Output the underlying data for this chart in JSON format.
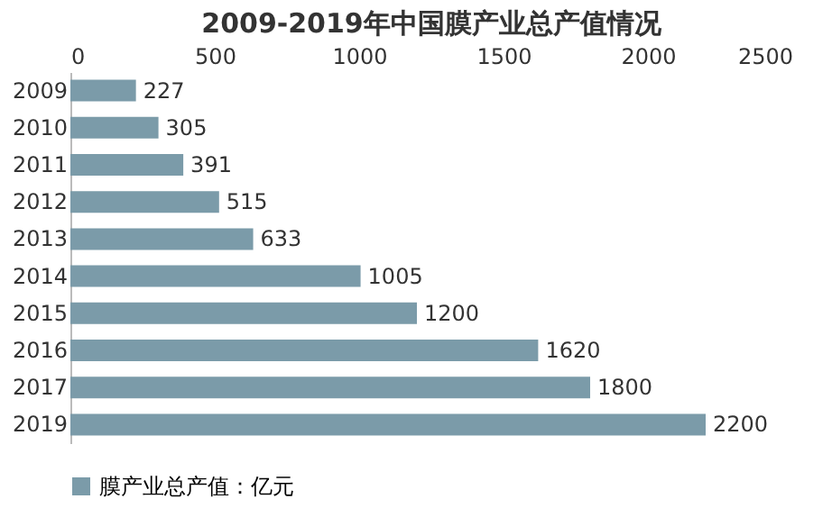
{
  "chart_data": {
    "type": "bar",
    "orientation": "horizontal",
    "title": "2009-2019年中国膜产业总产值情况",
    "categories": [
      "2009",
      "2010",
      "2011",
      "2012",
      "2013",
      "2014",
      "2015",
      "2016",
      "2017",
      "2019"
    ],
    "series": [
      {
        "name": "膜产业总产值：亿元",
        "color": "#7b9ba9",
        "values": [
          227,
          305,
          391,
          515,
          633,
          1005,
          1200,
          1620,
          1800,
          2200
        ]
      }
    ],
    "xlim": [
      0,
      2500
    ],
    "xticks": [
      0,
      500,
      1000,
      1500,
      2000,
      2500
    ],
    "data_labels": true,
    "grid": false,
    "legend": "bottom"
  }
}
